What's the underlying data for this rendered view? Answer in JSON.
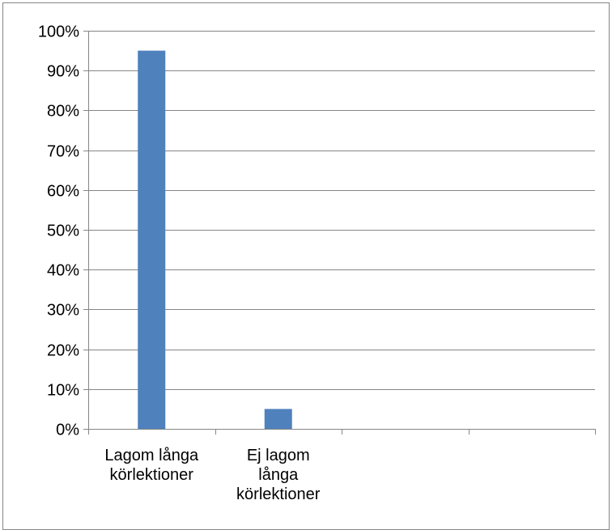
{
  "chart_data": {
    "type": "bar",
    "categories": [
      [
        "Lagom långa",
        "körlektioner"
      ],
      [
        "Ej lagom",
        "långa",
        "körlektioner"
      ],
      [
        ""
      ],
      [
        ""
      ]
    ],
    "series": [
      {
        "values": [
          0.95,
          0.05,
          null,
          null
        ],
        "color": "#4f81bd"
      }
    ],
    "y_ticks": [
      "0%",
      "10%",
      "20%",
      "30%",
      "40%",
      "50%",
      "60%",
      "70%",
      "80%",
      "90%",
      "100%"
    ],
    "ylim": [
      0,
      1
    ],
    "y_format": "percent",
    "grid": true,
    "legend": "none",
    "title": "",
    "xlabel": "",
    "ylabel": ""
  },
  "colors": {
    "bar": "#4f81bd",
    "gridline": "#868686",
    "axis": "#868686",
    "frame": "#868686",
    "text": "#000000"
  }
}
